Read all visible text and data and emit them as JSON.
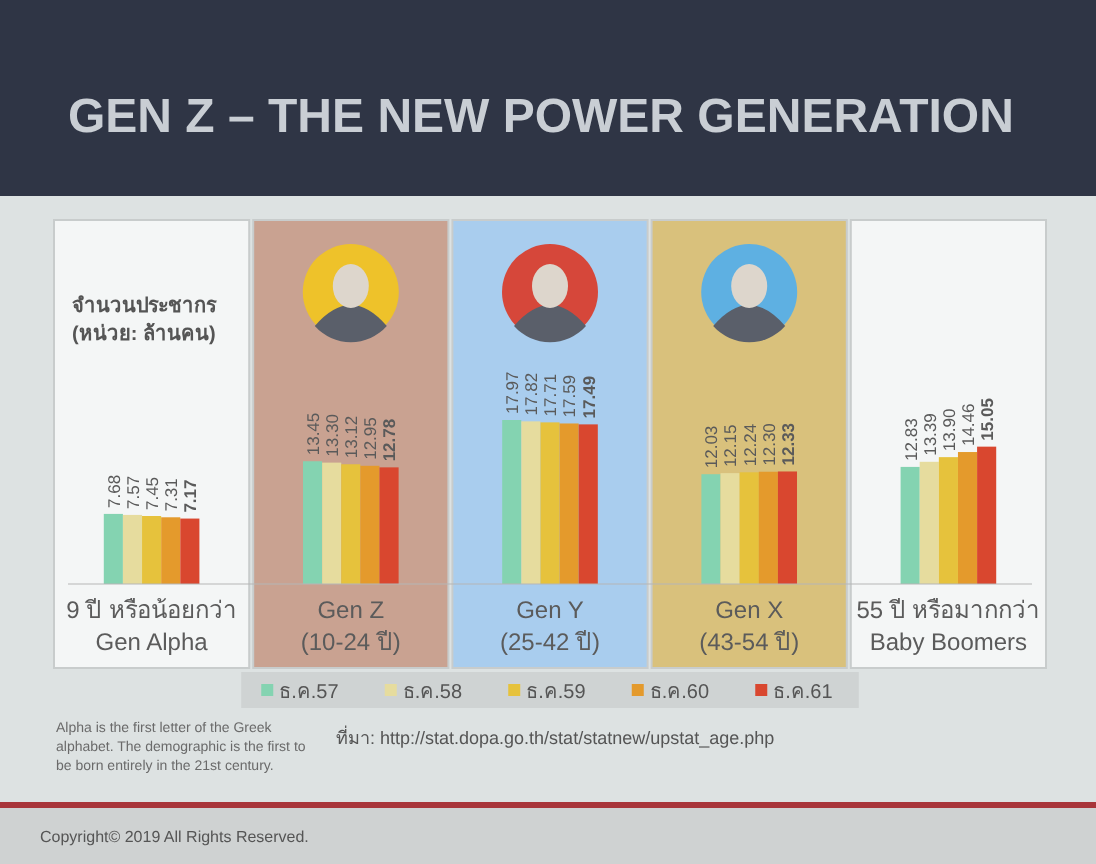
{
  "chart_data": {
    "type": "bar",
    "title": "GEN Z – THE NEW POWER GENERATION",
    "ylabel": "จำนวนประชากร\n(หน่วย: ล้านคน)",
    "categories": [
      "9 ปี หรือน้อยกว่า\nGen Alpha",
      "Gen Z\n(10-24 ปี)",
      "Gen Y\n(25-42 ปี)",
      "Gen X\n(43-54 ปี)",
      "55 ปี หรือมากกว่า\nBaby Boomers"
    ],
    "series": [
      {
        "name": "ธ.ค.57",
        "color": "#84d3b1",
        "values": [
          7.68,
          13.45,
          17.97,
          12.03,
          12.83
        ],
        "value_labels": [
          "7.68",
          "13.45",
          "17.97",
          "12.03",
          "12.83"
        ]
      },
      {
        "name": "ธ.ค.58",
        "color": "#e6dc9e",
        "values": [
          7.57,
          13.3,
          17.82,
          12.15,
          13.39
        ],
        "value_labels": [
          "7.57",
          "13.30",
          "17.82",
          "12.15",
          "13.39"
        ]
      },
      {
        "name": "ธ.ค.59",
        "color": "#e6c23c",
        "values": [
          7.45,
          13.12,
          17.71,
          12.24,
          13.9
        ],
        "value_labels": [
          "7.45",
          "13.12",
          "17.71",
          "12.24",
          "13.90"
        ]
      },
      {
        "name": "ธ.ค.60",
        "color": "#e49a2c",
        "values": [
          7.31,
          12.95,
          17.59,
          12.3,
          14.46
        ],
        "value_labels": [
          "7.31",
          "12.95",
          "17.59",
          "12.30",
          "14.46"
        ]
      },
      {
        "name": "ธ.ค.61",
        "color": "#d9472f",
        "values": [
          7.17,
          12.78,
          17.49,
          12.33,
          15.05
        ],
        "value_labels": [
          "7.17",
          "12.78",
          "17.49",
          "12.33",
          "15.05"
        ]
      }
    ],
    "legend": "bottom",
    "annotations": [
      "Alpha is the first letter of the Greek alphabet. The demographic is the first to be born entirely in the 21st century.",
      "ที่มา: http://stat.dopa.go.th/stat/statnew/upstat_age.php",
      "Copyright© 2019 All Rights Reserved."
    ]
  }
}
